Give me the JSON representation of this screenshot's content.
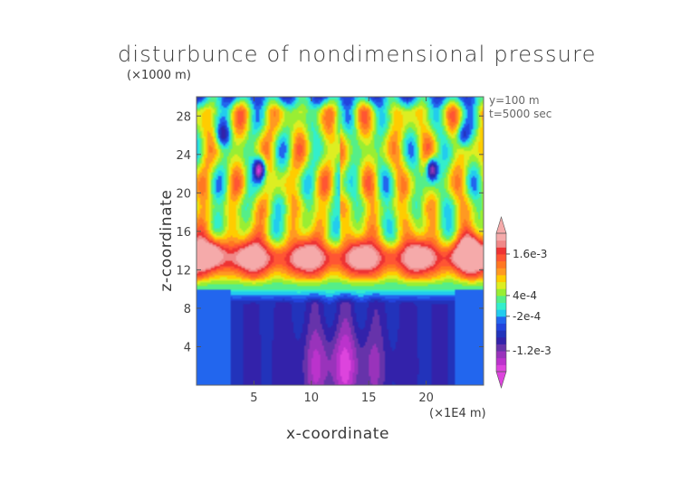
{
  "chart_data": {
    "type": "heatmap",
    "title": "disturbunce of nondimensional pressure",
    "xlabel": "x-coordinate",
    "ylabel": "z-coordinate",
    "x_unit": "(×1E4 m)",
    "y_unit": "(×1000 m)",
    "annotations": [
      "y=100 m",
      "t=5000 sec"
    ],
    "xlim": [
      0,
      25
    ],
    "ylim": [
      0,
      30
    ],
    "x_ticks": [
      5,
      10,
      15,
      20
    ],
    "y_ticks": [
      4,
      8,
      12,
      16,
      20,
      24,
      28
    ],
    "colorbar": {
      "labels": [
        "1.6e-3",
        "4e-4",
        "-2e-4",
        "-1.2e-3"
      ],
      "label_values": [
        0.0016,
        0.0004,
        -0.0002,
        -0.0012
      ],
      "min": -0.0018,
      "max": 0.0022,
      "levels": 20
    },
    "colormap": [
      "#dd44dd",
      "#bb33cc",
      "#9933bb",
      "#6633aa",
      "#3322aa",
      "#2233bb",
      "#2244dd",
      "#2266ee",
      "#22ccee",
      "#33eecc",
      "#55ee88",
      "#99ee33",
      "#ddee22",
      "#ffcc00",
      "#ff9922",
      "#ff7722",
      "#ff5533",
      "#ee3333",
      "#f08888",
      "#f5aaaa"
    ],
    "field_description_values": {
      "lower_cyan_band_value": -0.0003,
      "lower_blue_core_value": -0.0008,
      "lower_purple_core_value": -0.0013,
      "mid_pink_layer_value": 0.0019,
      "upper_orange_value": 0.0006
    }
  }
}
